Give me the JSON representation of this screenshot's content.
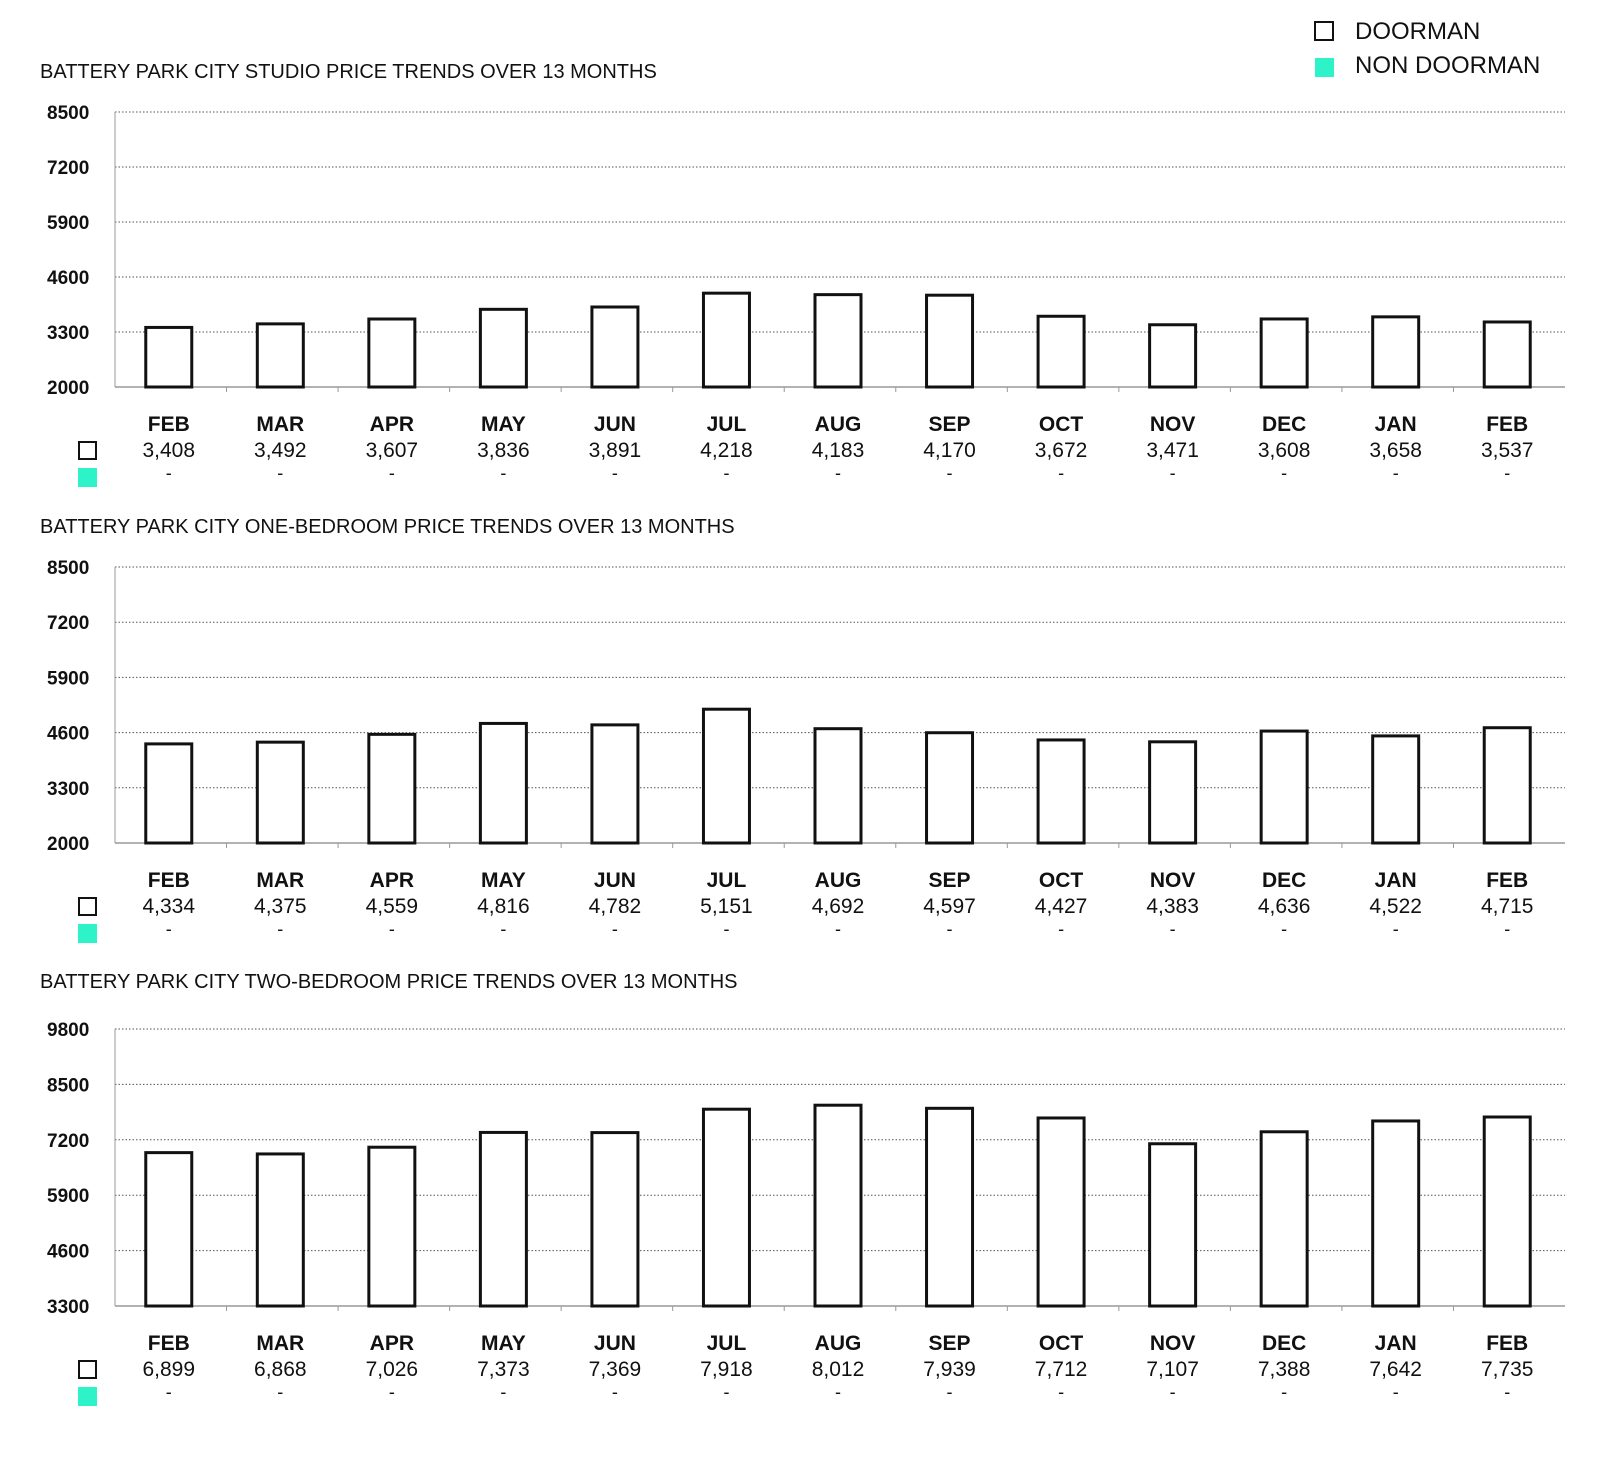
{
  "legend": {
    "doorman_label": "DOORMAN",
    "non_doorman_label": "NON DOORMAN",
    "doorman_icon": "hollow-square-icon",
    "non_doorman_icon": "filled-square-icon"
  },
  "colors": {
    "doorman_fill": "#ffffff",
    "doorman_stroke": "#111111",
    "non_doorman": "#2ef2c8",
    "gridline": "#555555",
    "axis": "#999999"
  },
  "chart_data": [
    {
      "type": "bar",
      "title": "BATTERY PARK CITY STUDIO PRICE TRENDS OVER 13 MONTHS",
      "categories": [
        "FEB",
        "MAR",
        "APR",
        "MAY",
        "JUN",
        "JUL",
        "AUG",
        "SEP",
        "OCT",
        "NOV",
        "DEC",
        "JAN",
        "FEB"
      ],
      "yticks": [
        2000,
        3300,
        4600,
        5900,
        7200,
        8500
      ],
      "ylim": [
        2000,
        8500
      ],
      "grid": true,
      "series": [
        {
          "name": "DOORMAN",
          "values": [
            3408,
            3492,
            3607,
            3836,
            3891,
            4218,
            4183,
            4170,
            3672,
            3471,
            3608,
            3658,
            3537
          ],
          "labels": [
            "3,408",
            "3,492",
            "3,607",
            "3,836",
            "3,891",
            "4,218",
            "4,183",
            "4,170",
            "3,672",
            "3,471",
            "3,608",
            "3,658",
            "3,537"
          ]
        },
        {
          "name": "NON DOORMAN",
          "values": [
            null,
            null,
            null,
            null,
            null,
            null,
            null,
            null,
            null,
            null,
            null,
            null,
            null
          ],
          "labels": [
            "-",
            "-",
            "-",
            "-",
            "-",
            "-",
            "-",
            "-",
            "-",
            "-",
            "-",
            "-",
            "-"
          ]
        }
      ]
    },
    {
      "type": "bar",
      "title": "BATTERY PARK CITY ONE-BEDROOM PRICE TRENDS OVER 13 MONTHS",
      "categories": [
        "FEB",
        "MAR",
        "APR",
        "MAY",
        "JUN",
        "JUL",
        "AUG",
        "SEP",
        "OCT",
        "NOV",
        "DEC",
        "JAN",
        "FEB"
      ],
      "yticks": [
        2000,
        3300,
        4600,
        5900,
        7200,
        8500
      ],
      "ylim": [
        2000,
        8500
      ],
      "grid": true,
      "series": [
        {
          "name": "DOORMAN",
          "values": [
            4334,
            4375,
            4559,
            4816,
            4782,
            5151,
            4692,
            4597,
            4427,
            4383,
            4636,
            4522,
            4715
          ],
          "labels": [
            "4,334",
            "4,375",
            "4,559",
            "4,816",
            "4,782",
            "5,151",
            "4,692",
            "4,597",
            "4,427",
            "4,383",
            "4,636",
            "4,522",
            "4,715"
          ]
        },
        {
          "name": "NON DOORMAN",
          "values": [
            null,
            null,
            null,
            null,
            null,
            null,
            null,
            null,
            null,
            null,
            null,
            null,
            null
          ],
          "labels": [
            "-",
            "-",
            "-",
            "-",
            "-",
            "-",
            "-",
            "-",
            "-",
            "-",
            "-",
            "-",
            "-"
          ]
        }
      ]
    },
    {
      "type": "bar",
      "title": "BATTERY PARK CITY TWO-BEDROOM PRICE TRENDS OVER 13 MONTHS",
      "categories": [
        "FEB",
        "MAR",
        "APR",
        "MAY",
        "JUN",
        "JUL",
        "AUG",
        "SEP",
        "OCT",
        "NOV",
        "DEC",
        "JAN",
        "FEB"
      ],
      "yticks": [
        3300,
        4600,
        5900,
        7200,
        8500,
        9800
      ],
      "ylim": [
        3300,
        9800
      ],
      "grid": true,
      "series": [
        {
          "name": "DOORMAN",
          "values": [
            6899,
            6868,
            7026,
            7373,
            7369,
            7918,
            8012,
            7939,
            7712,
            7107,
            7388,
            7642,
            7735
          ],
          "labels": [
            "6,899",
            "6,868",
            "7,026",
            "7,373",
            "7,369",
            "7,918",
            "8,012",
            "7,939",
            "7,712",
            "7,107",
            "7,388",
            "7,642",
            "7,735"
          ]
        },
        {
          "name": "NON DOORMAN",
          "values": [
            null,
            null,
            null,
            null,
            null,
            null,
            null,
            null,
            null,
            null,
            null,
            null,
            null
          ],
          "labels": [
            "-",
            "-",
            "-",
            "-",
            "-",
            "-",
            "-",
            "-",
            "-",
            "-",
            "-",
            "-",
            "-"
          ]
        }
      ]
    }
  ]
}
